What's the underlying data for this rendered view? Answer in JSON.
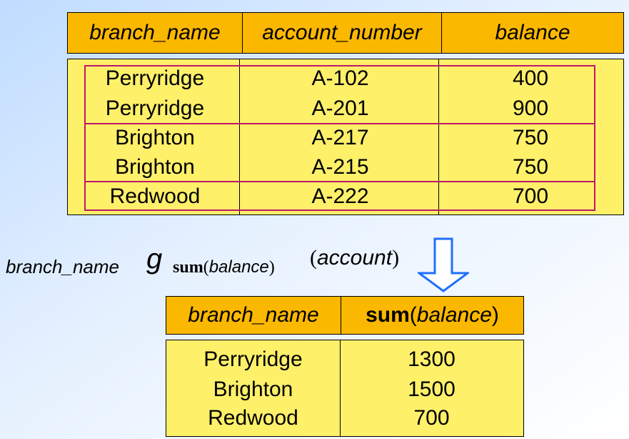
{
  "input_table": {
    "headers": [
      "branch_name",
      "account_number",
      "balance"
    ],
    "rows": [
      {
        "branch_name": "Perryridge",
        "account_number": "A-102",
        "balance": "400"
      },
      {
        "branch_name": "Perryridge",
        "account_number": "A-201",
        "balance": "900"
      },
      {
        "branch_name": "Brighton",
        "account_number": "A-217",
        "balance": "750"
      },
      {
        "branch_name": "Brighton",
        "account_number": "A-215",
        "balance": "750"
      },
      {
        "branch_name": "Redwood",
        "account_number": "A-222",
        "balance": "700"
      }
    ]
  },
  "expression": {
    "group_attribute": "branch_name",
    "operator": "g",
    "function": "sum",
    "function_open": "(",
    "function_arg": "balance",
    "function_close": ")",
    "relation_open": "(",
    "relation": "account",
    "relation_close": ")"
  },
  "result_table": {
    "headers": {
      "col1": "branch_name",
      "col2_function": "sum",
      "col2_open": "(",
      "col2_arg": "balance",
      "col2_close": ")"
    },
    "rows": [
      {
        "branch_name": "Perryridge",
        "sum": "1300"
      },
      {
        "branch_name": "Brighton",
        "sum": "1500"
      },
      {
        "branch_name": "Redwood",
        "sum": "700"
      }
    ]
  },
  "colors": {
    "header_fill": "#fbb800",
    "body_fill": "#fff06a",
    "group_outline": "#c0176a",
    "arrow": "#1f6fff"
  }
}
